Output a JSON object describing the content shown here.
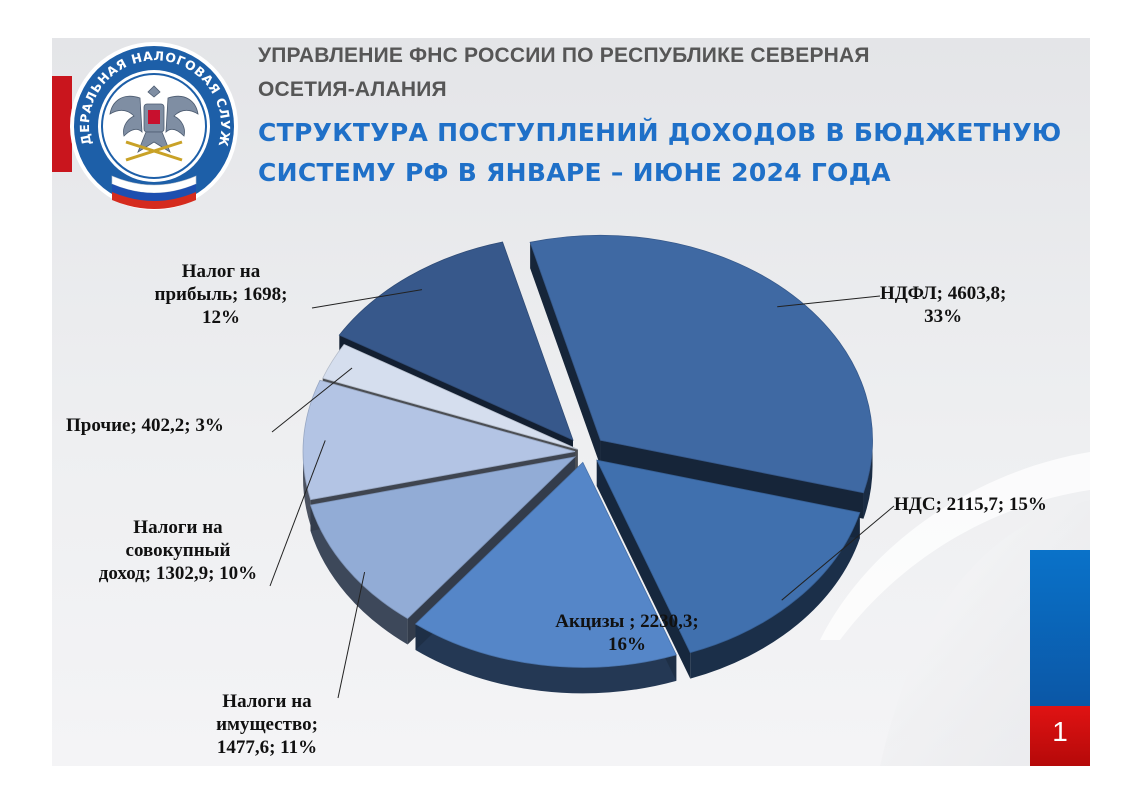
{
  "header": {
    "org_line1": "УПРАВЛЕНИЕ ФНС РОССИИ ПО РЕСПУБЛИКЕ СЕВЕРНАЯ",
    "org_line2": "ОСЕТИЯ-АЛАНИЯ",
    "title_line1": "СТРУКТУРА  ПОСТУПЛЕНИЙ  ДОХОДОВ  В БЮДЖЕТНУЮ",
    "title_line2": "СИСТЕМУ РФ В  ЯНВАРЕ – ИЮНЕ 2024  ГОДА"
  },
  "logo": {
    "text": "ФЕДЕРАЛЬНАЯ НАЛОГОВАЯ СЛУЖБА",
    "colors": [
      "#1d5fa8",
      "#ffffff",
      "#d52b1e"
    ]
  },
  "page_number": "1",
  "accent_colors": {
    "blue": "#0b6fc4",
    "red": "#d00a0a",
    "red_tab": "#c9151d"
  },
  "chart_data": {
    "type": "pie",
    "variant": "3d-exploded",
    "slices": [
      {
        "name": "НДФЛ",
        "value": 4603.8,
        "percent": 33,
        "color": "#3f69a3",
        "label": [
          "НДФЛ; 4603,8;",
          "33%"
        ]
      },
      {
        "name": "НДС",
        "value": 2115.7,
        "percent": 15,
        "color": "#4070ae",
        "label": [
          "НДС; 2115,7; 15%"
        ]
      },
      {
        "name": "Акцизы ",
        "value": 2230.3,
        "percent": 16,
        "color": "#5586c8",
        "label": [
          "Акцизы ; 2230,3;",
          "16%"
        ]
      },
      {
        "name": "Налоги на имущество",
        "value": 1477.6,
        "percent": 11,
        "color": "#92acd6",
        "label": [
          "Налоги на",
          "имущество;",
          "1477,6; 11%"
        ]
      },
      {
        "name": "Налоги на совокупный доход",
        "value": 1302.9,
        "percent": 10,
        "color": "#b3c4e4",
        "label": [
          "Налоги на",
          "совокупный",
          "доход; 1302,9; 10%"
        ]
      },
      {
        "name": "Прочие",
        "value": 402.2,
        "percent": 3,
        "color": "#d5deee",
        "label": [
          "Прочие; 402,2; 3%"
        ]
      },
      {
        "name": "Налог на прибыль",
        "value": 1698,
        "percent": 12,
        "color": "#37588b",
        "label": [
          "Налог на",
          "прибыль; 1698;",
          "12%"
        ]
      }
    ]
  }
}
